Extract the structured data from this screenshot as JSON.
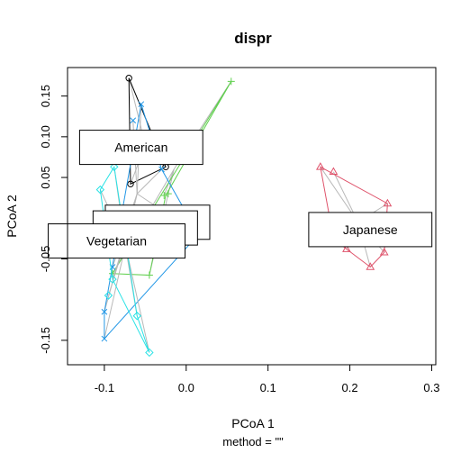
{
  "chart_data": {
    "type": "scatter",
    "title": "dispr",
    "xlabel": "PCoA 1",
    "ylabel": "PCoA 2",
    "subtitle": "method = \"\"",
    "xlim": [
      -0.145,
      0.305
    ],
    "ylim": [
      -0.18,
      0.185
    ],
    "xticks": [
      {
        "value": -0.1,
        "label": "-0.1"
      },
      {
        "value": 0.0,
        "label": "0.0"
      },
      {
        "value": 0.1,
        "label": "0.1"
      },
      {
        "value": 0.2,
        "label": "0.2"
      },
      {
        "value": 0.3,
        "label": "0.3"
      }
    ],
    "yticks": [
      {
        "value": 0.15,
        "label": "0.15"
      },
      {
        "value": 0.1,
        "label": "0.10"
      },
      {
        "value": 0.05,
        "label": "0.05"
      },
      {
        "value": -0.05,
        "label": "-0.05"
      },
      {
        "value": -0.15,
        "label": "-0.15"
      }
    ],
    "grid": false,
    "groups": [
      {
        "name": "Japanese",
        "color": "#DF536B",
        "symbol": "triangle",
        "centroid": [
          0.21,
          -0.005
        ],
        "hull": [
          [
            0.164,
            0.063
          ],
          [
            0.246,
            0.018
          ],
          [
            0.242,
            -0.042
          ],
          [
            0.225,
            -0.06
          ],
          [
            0.196,
            -0.038
          ],
          [
            0.18,
            -0.025
          ]
        ],
        "points": [
          [
            0.164,
            0.063
          ],
          [
            0.18,
            0.057
          ],
          [
            0.246,
            0.018
          ],
          [
            0.242,
            -0.042
          ],
          [
            0.225,
            -0.06
          ],
          [
            0.196,
            -0.038
          ],
          [
            0.18,
            -0.025
          ],
          [
            0.22,
            -0.03
          ]
        ],
        "label": {
          "text": "Japanese",
          "x": 0.225,
          "y": -0.014
        }
      },
      {
        "name": "American",
        "color": "#000000",
        "symbol": "circle",
        "centroid": [
          -0.05,
          0.09
        ],
        "hull": [
          [
            -0.07,
            0.172
          ],
          [
            -0.025,
            0.063
          ],
          [
            -0.068,
            0.042
          ]
        ],
        "points": [
          [
            -0.07,
            0.172
          ],
          [
            -0.025,
            0.063
          ],
          [
            -0.068,
            0.042
          ]
        ],
        "label": {
          "text": "American",
          "x": -0.055,
          "y": 0.087
        }
      },
      {
        "name": "",
        "color": "#61D04F",
        "symbol": "plus",
        "centroid": [
          -0.015,
          0.06
        ],
        "hull": [
          [
            0.055,
            0.168
          ],
          [
            -0.025,
            0.028
          ],
          [
            -0.045,
            -0.07
          ],
          [
            -0.09,
            -0.068
          ]
        ],
        "points": [
          [
            0.055,
            0.168
          ],
          [
            -0.022,
            0.03
          ],
          [
            -0.027,
            0.028
          ],
          [
            -0.045,
            -0.07
          ],
          [
            -0.09,
            -0.068
          ]
        ],
        "label": {
          "text": "",
          "x": -0.035,
          "y": -0.005
        }
      },
      {
        "name": "",
        "color": "#2297E6",
        "symbol": "cross",
        "centroid": [
          -0.06,
          0.03
        ],
        "hull": [
          [
            -0.055,
            0.14
          ],
          [
            -0.03,
            0.06
          ],
          [
            0.015,
            -0.02
          ],
          [
            -0.1,
            -0.148
          ],
          [
            -0.1,
            -0.115
          ]
        ],
        "points": [
          [
            -0.055,
            0.14
          ],
          [
            -0.065,
            0.12
          ],
          [
            -0.03,
            0.06
          ],
          [
            0.015,
            -0.02
          ],
          [
            -0.1,
            -0.148
          ],
          [
            -0.1,
            -0.115
          ],
          [
            -0.09,
            -0.06
          ]
        ],
        "label": {
          "text": "",
          "x": -0.05,
          "y": -0.012
        }
      },
      {
        "name": "Vegetarian",
        "color": "#28E2E5",
        "symbol": "diamond",
        "centroid": [
          -0.075,
          -0.03
        ],
        "hull": [
          [
            -0.088,
            0.063
          ],
          [
            -0.105,
            0.035
          ],
          [
            -0.09,
            -0.075
          ],
          [
            -0.045,
            -0.165
          ],
          [
            -0.06,
            -0.12
          ]
        ],
        "points": [
          [
            -0.088,
            0.063
          ],
          [
            -0.105,
            0.035
          ],
          [
            -0.09,
            -0.075
          ],
          [
            -0.045,
            -0.165
          ],
          [
            -0.06,
            -0.12
          ],
          [
            -0.095,
            -0.095
          ]
        ],
        "label": {
          "text": "Vegetarian",
          "x": -0.085,
          "y": -0.028
        }
      }
    ]
  }
}
